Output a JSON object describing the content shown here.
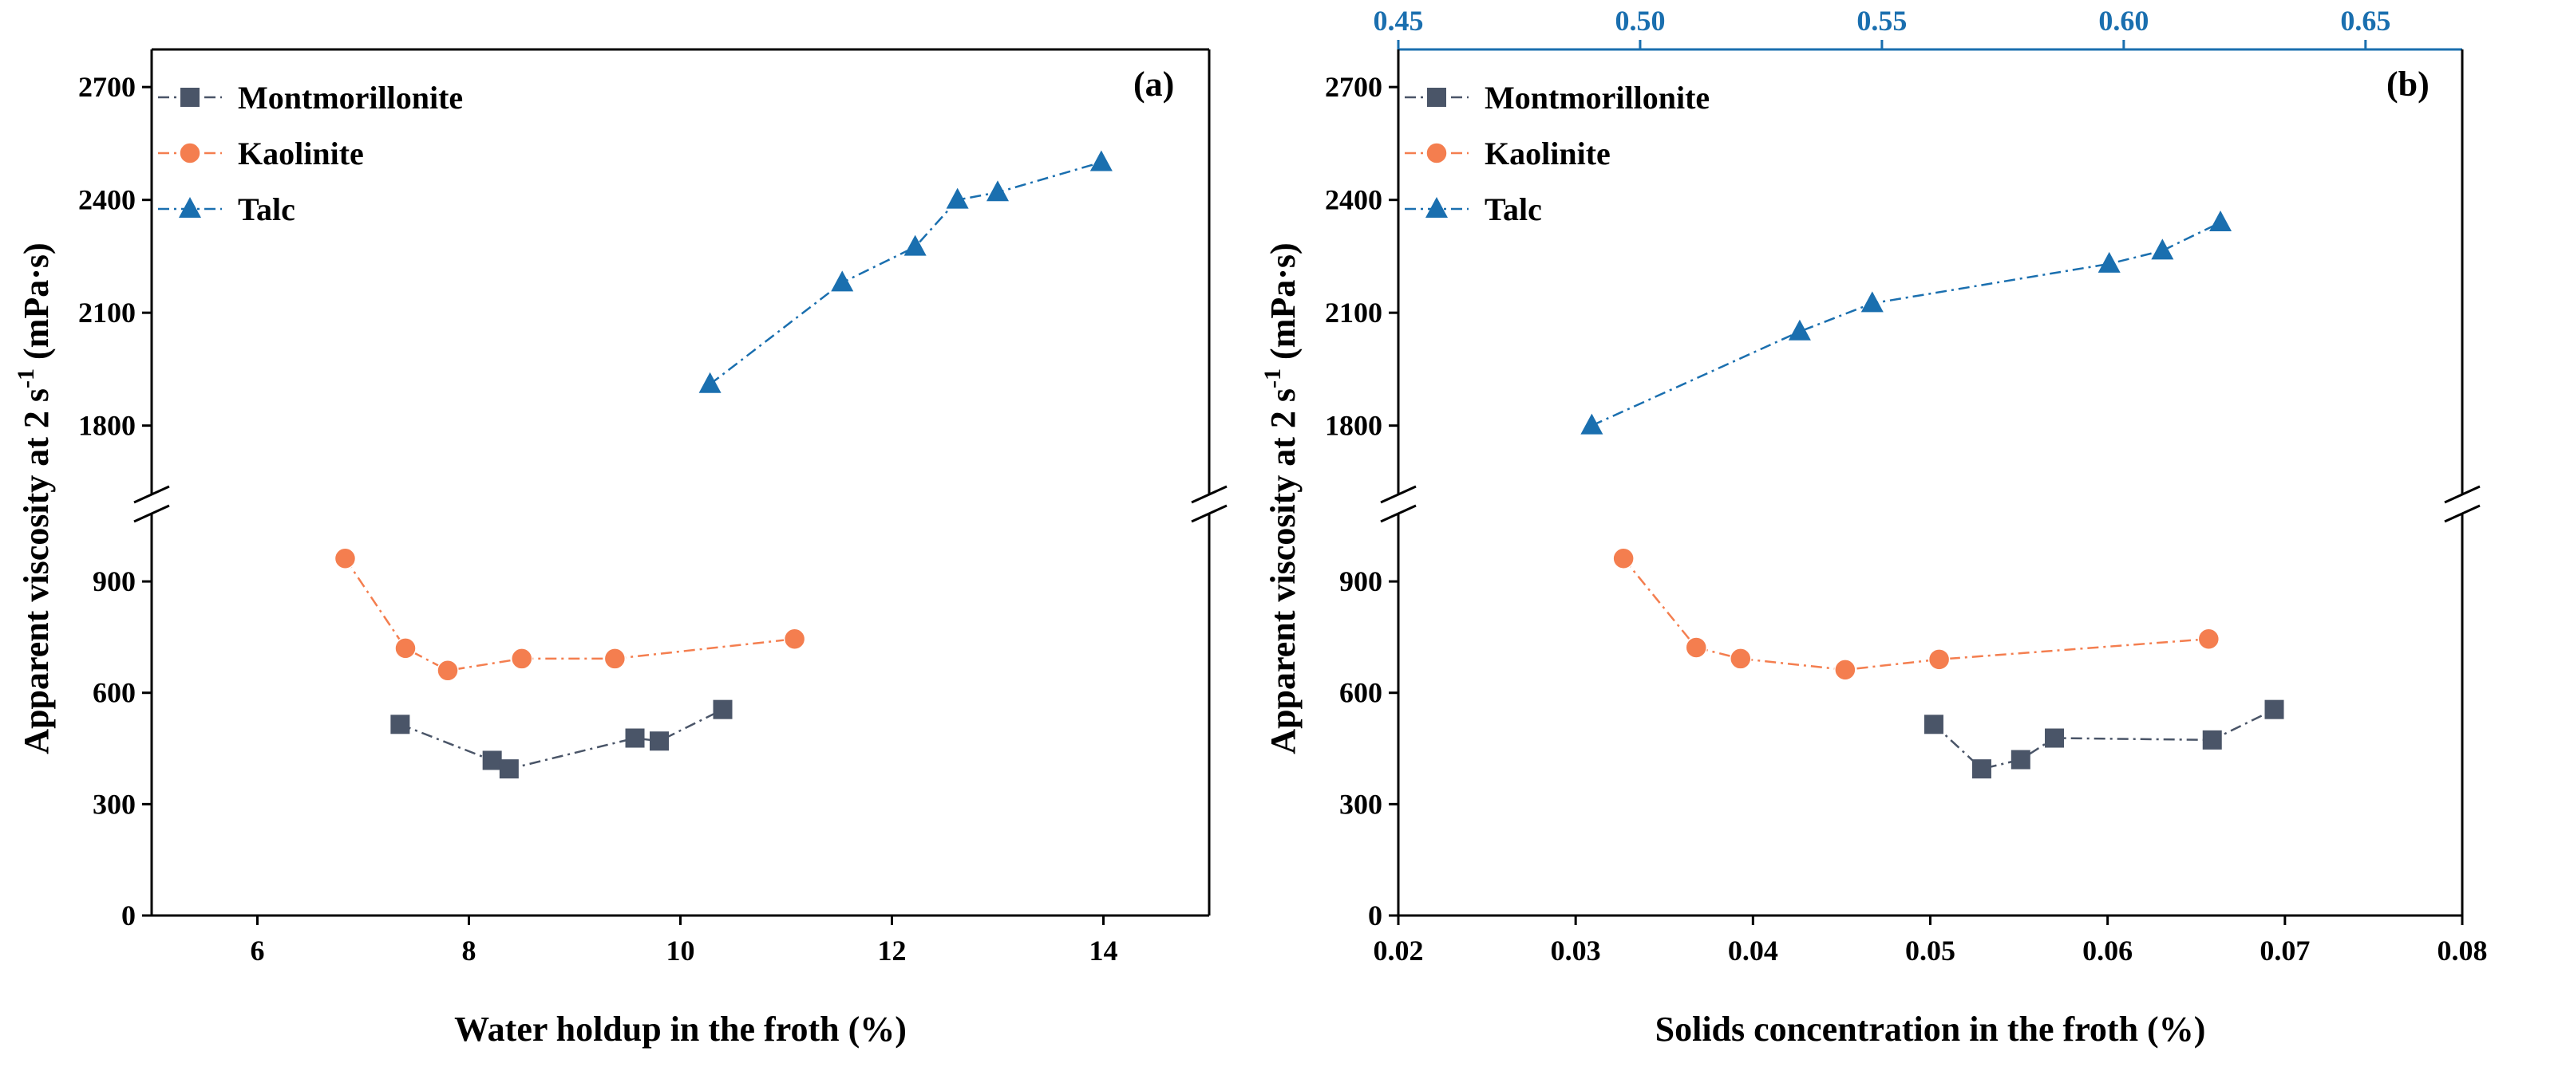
{
  "colors": {
    "montmorillonite": "#4a5568",
    "kaolinite": "#f47e4f",
    "talc": "#1a6faf",
    "top_axis": "#1a6faf",
    "axis": "#000000"
  },
  "chart_data": [
    {
      "type": "line",
      "panel_label": "(a)",
      "xlabel": "Water holdup in the froth (%)",
      "ylabel": "Apparent viscosity at 2 s",
      "ylabel_sup": "-1",
      "ylabel_unit": " (mPa·s)",
      "xlim": [
        5,
        15
      ],
      "x_ticks": [
        6,
        8,
        10,
        12,
        14
      ],
      "y_lower_range": [
        0,
        1100
      ],
      "y_lower_ticks": [
        0,
        300,
        600,
        900
      ],
      "y_upper_range": [
        1600,
        2800
      ],
      "y_upper_ticks": [
        1800,
        2100,
        2400,
        2700
      ],
      "legend": [
        "Montmorillonite",
        "Kaolinite",
        "Talc"
      ],
      "series": [
        {
          "name": "Montmorillonite",
          "marker": "square",
          "x": [
            7.35,
            8.22,
            8.38,
            9.57,
            9.8,
            10.4
          ],
          "y": [
            515,
            418,
            395,
            478,
            470,
            555
          ]
        },
        {
          "name": "Kaolinite",
          "marker": "circle",
          "x": [
            6.83,
            7.4,
            7.8,
            8.5,
            9.38,
            11.08
          ],
          "y": [
            962,
            720,
            660,
            692,
            692,
            745
          ]
        },
        {
          "name": "Talc",
          "marker": "triangle",
          "x": [
            10.28,
            11.53,
            12.22,
            12.62,
            13.0,
            13.98
          ],
          "y": [
            1910,
            2180,
            2275,
            2400,
            2420,
            2500
          ]
        }
      ]
    },
    {
      "type": "line",
      "panel_label": "(b)",
      "xlabel": "Solids concentration in the froth (%)",
      "ylabel": "Apparent viscosity at 2 s",
      "ylabel_sup": "-1",
      "ylabel_unit": " (mPa·s)",
      "xlim": [
        0.02,
        0.08
      ],
      "x_ticks": [
        "0.02",
        "0.03",
        "0.04",
        "0.05",
        "0.06",
        "0.07",
        "0.08"
      ],
      "top_xlim": [
        0.45,
        0.67
      ],
      "top_x_ticks": [
        "0.45",
        "0.50",
        "0.55",
        "0.60",
        "0.65"
      ],
      "y_lower_range": [
        0,
        1100
      ],
      "y_lower_ticks": [
        0,
        300,
        600,
        900
      ],
      "y_upper_range": [
        1600,
        2800
      ],
      "y_upper_ticks": [
        1800,
        2100,
        2400,
        2700
      ],
      "legend": [
        "Montmorillonite",
        "Kaolinite",
        "Talc"
      ],
      "series": [
        {
          "name": "Montmorillonite",
          "marker": "square",
          "x": [
            0.0502,
            0.0529,
            0.0551,
            0.057,
            0.0659,
            0.0694
          ],
          "y": [
            515,
            395,
            420,
            478,
            473,
            555
          ]
        },
        {
          "name": "Kaolinite",
          "marker": "circle",
          "x": [
            0.0327,
            0.0368,
            0.0393,
            0.0452,
            0.0505,
            0.0657
          ],
          "y": [
            962,
            722,
            692,
            662,
            690,
            745
          ]
        },
        {
          "name": "Talc",
          "axis": "top",
          "marker": "triangle",
          "x": [
            0.49,
            0.533,
            0.548,
            0.597,
            0.608,
            0.62
          ],
          "y": [
            1800,
            2050,
            2125,
            2230,
            2265,
            2340
          ]
        }
      ]
    }
  ]
}
